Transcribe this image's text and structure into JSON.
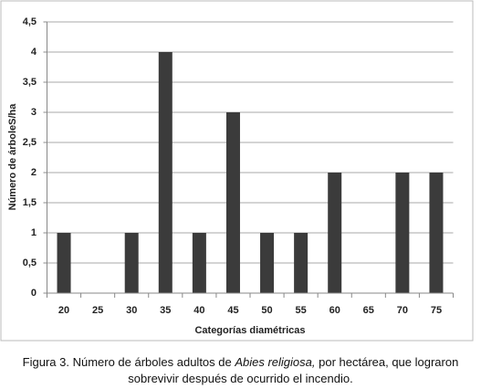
{
  "chart_data": {
    "type": "bar",
    "categories": [
      "20",
      "25",
      "30",
      "35",
      "40",
      "45",
      "50",
      "55",
      "60",
      "65",
      "70",
      "75"
    ],
    "values": [
      1,
      0,
      1,
      4,
      1,
      3,
      1,
      1,
      2,
      0,
      2,
      2
    ],
    "color": "#3b3b3b",
    "ylim": [
      0,
      4.5
    ],
    "yticks": [
      0,
      {
        "value": 0.5,
        "label": "0,5"
      },
      1,
      {
        "value": 1.5,
        "label": "1,5"
      },
      2,
      {
        "value": 2.5,
        "label": "2,5"
      },
      3,
      {
        "value": 3.5,
        "label": "3,5"
      },
      4,
      {
        "value": 4.5,
        "label": "4,5"
      }
    ],
    "grid": true,
    "xlabel": "Categorías diamétricas",
    "ylabel": "Número de árboleS/ha",
    "caption": [
      "Figura 3. Número de árboles adultos de ",
      "Abies religiosa,",
      " por hectárea, que lograron sobrevivir después de ocurrido el incendio."
    ]
  }
}
